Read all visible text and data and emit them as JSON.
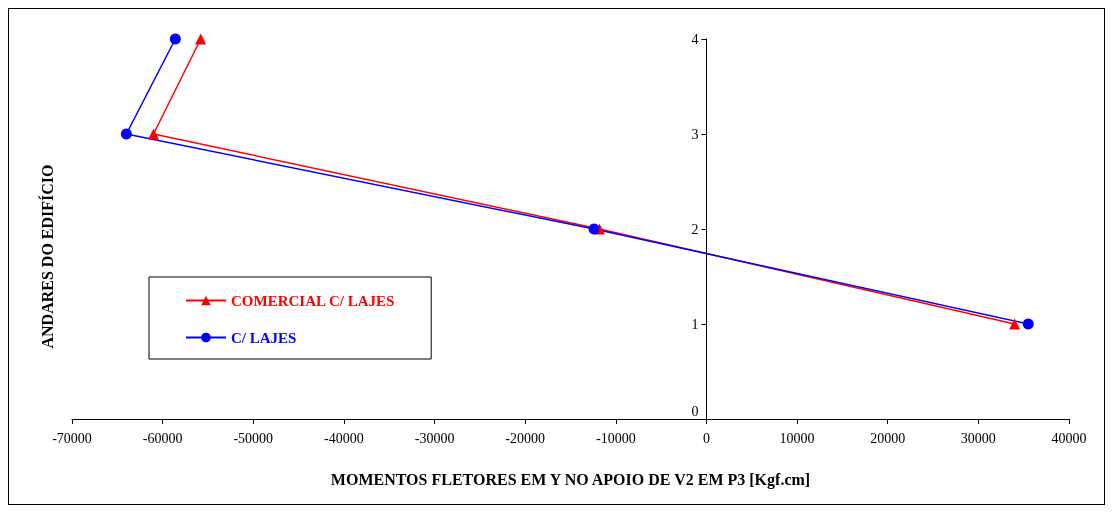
{
  "chart_data": {
    "type": "line",
    "xlabel": "MOMENTOS FLETORES EM Y NO APOIO DE V2 EM P3 [Kgf.cm]",
    "ylabel": "ANDARES DO EDIFÍCIO",
    "xlim": [
      -70000,
      40000
    ],
    "xticks": [
      -70000,
      -60000,
      -50000,
      -40000,
      -30000,
      -20000,
      -10000,
      0,
      10000,
      20000,
      30000,
      40000
    ],
    "ylim": [
      0,
      4
    ],
    "yticks": [
      0,
      1,
      2,
      3,
      4
    ],
    "grid": false,
    "legend": "left",
    "series": [
      {
        "name": "COMERCIAL C/ LAJES",
        "color": "#ff0000",
        "marker": "triangle",
        "x": [
          34000,
          -11800,
          -61000,
          -55800
        ],
        "values": [
          1,
          2,
          3,
          4
        ]
      },
      {
        "name": "C/ LAJES",
        "color": "#0000ff",
        "marker": "circle",
        "x": [
          35500,
          -12400,
          -64000,
          -58600
        ],
        "values": [
          1,
          2,
          3,
          4
        ]
      }
    ]
  }
}
